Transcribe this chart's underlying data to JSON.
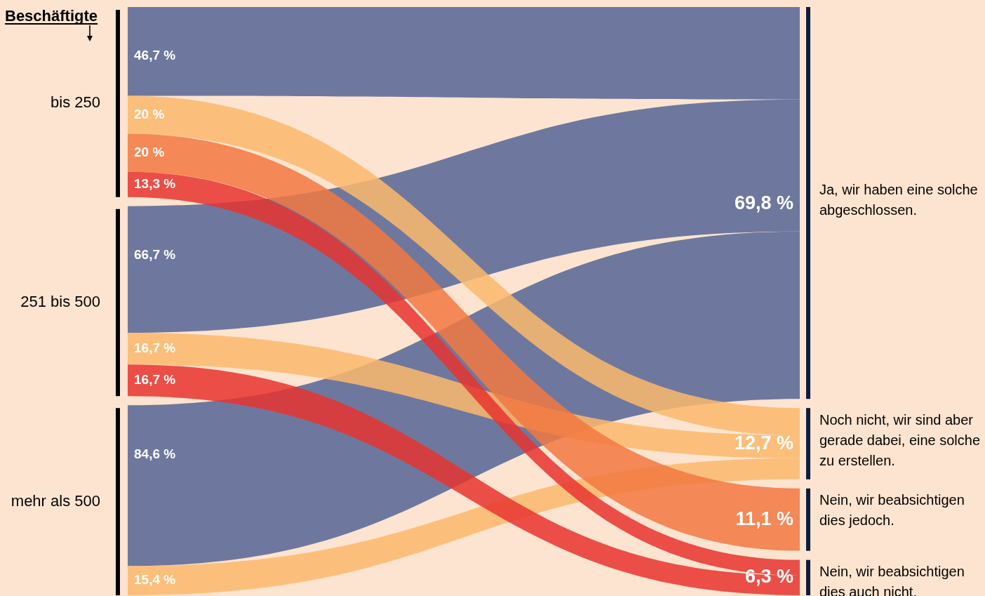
{
  "chart_data": {
    "type": "other",
    "ylabel": "Beschäftigte",
    "categories": [
      "bis 250",
      "251 bis 500",
      "mehr als 500"
    ],
    "series": [
      {
        "name": "Ja, wir haben eine solche abgeschlossen.",
        "color": "#6e789e",
        "values": [
          46.7,
          66.7,
          84.6
        ],
        "value_labels": [
          "46,7 %",
          "66,7 %",
          "84,6 %"
        ]
      },
      {
        "name": "Noch nicht, wir sind aber gerade dabei, eine solche zu erstellen.",
        "color": "#fcb86c",
        "values": [
          20,
          16.7,
          15.4
        ],
        "value_labels": [
          "20 %",
          "16,7 %",
          "15,4 %"
        ]
      },
      {
        "name": "Nein, wir beabsichtigen dies jedoch.",
        "color": "#f27841",
        "values": [
          20,
          null,
          null
        ],
        "value_labels": [
          "20 %",
          null,
          null
        ]
      },
      {
        "name": "Nein, wir beabsichtigen dies auch nicht.",
        "color": "#e8342f",
        "values": [
          13.3,
          16.7,
          null
        ],
        "value_labels": [
          "13,3 %",
          "16,7 %",
          null
        ]
      }
    ],
    "totals": [
      "69,8 %",
      "12,7 %",
      "11,1 %",
      "6,3 %"
    ]
  }
}
